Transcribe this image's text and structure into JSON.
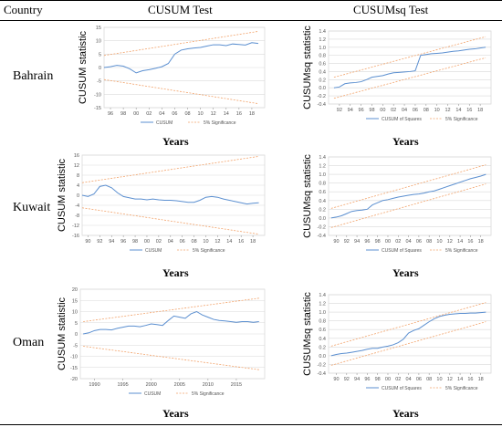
{
  "header": {
    "country": "Country",
    "cusum": "CUSUM Test",
    "cusumsq": "CUSUMsq Test"
  },
  "rows": [
    {
      "country": "Bahrain"
    },
    {
      "country": "Kuwait"
    },
    {
      "country": "Oman"
    }
  ],
  "colors": {
    "line": "#5b8fd0",
    "bound": "#f2a36b",
    "grid": "#d9d9d9",
    "axis": "#999999",
    "text": "#555555"
  },
  "chart_data": [
    {
      "type": "line",
      "panel": "bahrain-cusum",
      "ylabel": "CUSUM statistic",
      "xlabel": "Years",
      "xlim": [
        1995,
        2020
      ],
      "ylim": [
        -15,
        15
      ],
      "yticks": [
        -15,
        -10,
        -5,
        0,
        5,
        10,
        15
      ],
      "xticks": [
        1996,
        1998,
        2000,
        2002,
        2004,
        2006,
        2008,
        2010,
        2012,
        2014,
        2016,
        2018
      ],
      "xtick_labels": [
        "96",
        "98",
        "00",
        "02",
        "04",
        "06",
        "08",
        "10",
        "12",
        "14",
        "16",
        "18"
      ],
      "legend": [
        "CUSUM",
        "5% Significance"
      ],
      "series": [
        {
          "name": "CUSUM",
          "x": [
            1995,
            1996,
            1997,
            1998,
            1999,
            2000,
            2001,
            2002,
            2003,
            2004,
            2005,
            2006,
            2007,
            2008,
            2009,
            2010,
            2011,
            2012,
            2013,
            2014,
            2015,
            2016,
            2017,
            2018,
            2019
          ],
          "y": [
            0,
            0.3,
            0.8,
            0.5,
            -0.5,
            -2,
            -1.2,
            -0.8,
            -0.3,
            0.3,
            1.5,
            5,
            6.5,
            7,
            7.3,
            7.5,
            8,
            8.5,
            8.5,
            8.2,
            8.8,
            8.6,
            8.4,
            9.3,
            9
          ]
        },
        {
          "name": "5% Significance",
          "x": [
            1995,
            2019
          ],
          "y": [
            4.5,
            13.5
          ]
        },
        {
          "name": "5% Significance",
          "x": [
            1995,
            2019
          ],
          "y": [
            -4.5,
            -13.5
          ]
        }
      ]
    },
    {
      "type": "line",
      "panel": "bahrain-cusumsq",
      "ylabel": "CUSUMsq statistic",
      "xlabel": "Years",
      "xlim": [
        1990,
        2020
      ],
      "ylim": [
        -0.4,
        1.4
      ],
      "yticks": [
        -0.4,
        -0.2,
        0,
        0.2,
        0.4,
        0.6,
        0.8,
        1,
        1.2,
        1.4
      ],
      "ytick_labels": [
        "-0.4",
        "-0.2",
        "0.0",
        "0.2",
        "0.4",
        "0.6",
        "0.8",
        "1.0",
        "1.2",
        "1.4"
      ],
      "xticks": [
        1992,
        1994,
        1996,
        1998,
        2000,
        2002,
        2004,
        2006,
        2008,
        2010,
        2012,
        2014,
        2016,
        2018
      ],
      "xtick_labels": [
        "92",
        "94",
        "96",
        "98",
        "00",
        "02",
        "04",
        "06",
        "08",
        "10",
        "12",
        "14",
        "16",
        "18"
      ],
      "legend": [
        "CUSUM of Squares",
        "5% Significance"
      ],
      "series": [
        {
          "name": "CUSUM of Squares",
          "x": [
            1991,
            1992,
            1993,
            1994,
            1995,
            1996,
            1997,
            1998,
            1999,
            2000,
            2001,
            2002,
            2003,
            2004,
            2005,
            2006,
            2007,
            2008,
            2009,
            2010,
            2011,
            2012,
            2013,
            2014,
            2015,
            2016,
            2017,
            2018,
            2019
          ],
          "y": [
            0,
            0.02,
            0.1,
            0.12,
            0.13,
            0.15,
            0.2,
            0.26,
            0.28,
            0.3,
            0.34,
            0.37,
            0.38,
            0.39,
            0.4,
            0.42,
            0.8,
            0.82,
            0.84,
            0.85,
            0.86,
            0.88,
            0.9,
            0.91,
            0.93,
            0.95,
            0.96,
            0.98,
            1
          ]
        },
        {
          "name": "5% Significance",
          "x": [
            1991,
            2019
          ],
          "y": [
            0.26,
            1.26
          ]
        },
        {
          "name": "5% Significance",
          "x": [
            1991,
            2019
          ],
          "y": [
            -0.26,
            0.74
          ]
        }
      ]
    },
    {
      "type": "line",
      "panel": "kuwait-cusum",
      "ylabel": "CUSUM statistic",
      "xlabel": "Years",
      "xlim": [
        1989,
        2020
      ],
      "ylim": [
        -16,
        16
      ],
      "yticks": [
        -16,
        -12,
        -8,
        -4,
        0,
        4,
        8,
        12,
        16
      ],
      "xticks": [
        1990,
        1992,
        1994,
        1996,
        1998,
        2000,
        2002,
        2004,
        2006,
        2008,
        2010,
        2012,
        2014,
        2016,
        2018
      ],
      "xtick_labels": [
        "90",
        "92",
        "94",
        "96",
        "98",
        "00",
        "02",
        "04",
        "06",
        "08",
        "10",
        "12",
        "14",
        "16",
        "18"
      ],
      "legend": [
        "CUSUM",
        "5% Significance"
      ],
      "series": [
        {
          "name": "CUSUM",
          "x": [
            1989,
            1990,
            1991,
            1992,
            1993,
            1994,
            1995,
            1996,
            1997,
            1998,
            1999,
            2000,
            2001,
            2002,
            2003,
            2004,
            2005,
            2006,
            2007,
            2008,
            2009,
            2010,
            2011,
            2012,
            2013,
            2014,
            2015,
            2016,
            2017,
            2018,
            2019
          ],
          "y": [
            0,
            -0.5,
            0.5,
            3.5,
            4,
            3,
            1,
            -0.5,
            -1,
            -1.5,
            -1.5,
            -1.8,
            -1.5,
            -1.8,
            -2,
            -2,
            -2.2,
            -2.5,
            -2.8,
            -2.8,
            -2,
            -0.8,
            -0.5,
            -0.8,
            -1.5,
            -2,
            -2.5,
            -3,
            -3.5,
            -3.2,
            -3
          ]
        },
        {
          "name": "5% Significance",
          "x": [
            1989,
            2019
          ],
          "y": [
            5,
            15.5
          ]
        },
        {
          "name": "5% Significance",
          "x": [
            1989,
            2019
          ],
          "y": [
            -5,
            -15.5
          ]
        }
      ]
    },
    {
      "type": "line",
      "panel": "kuwait-cusumsq",
      "ylabel": "CUSUMsq statistic",
      "xlabel": "Years",
      "xlim": [
        1988.5,
        2020
      ],
      "ylim": [
        -0.4,
        1.4
      ],
      "yticks": [
        -0.4,
        -0.2,
        0,
        0.2,
        0.4,
        0.6,
        0.8,
        1,
        1.2,
        1.4
      ],
      "ytick_labels": [
        "-0.4",
        "-0.2",
        "0.0",
        "0.2",
        "0.4",
        "0.6",
        "0.8",
        "1.0",
        "1.2",
        "1.4"
      ],
      "xticks": [
        1990,
        1992,
        1994,
        1996,
        1998,
        2000,
        2002,
        2004,
        2006,
        2008,
        2010,
        2012,
        2014,
        2016,
        2018
      ],
      "xtick_labels": [
        "90",
        "92",
        "94",
        "96",
        "98",
        "00",
        "02",
        "04",
        "06",
        "08",
        "10",
        "12",
        "14",
        "16",
        "18"
      ],
      "legend": [
        "CUSUM of Squares",
        "5% Significance"
      ],
      "series": [
        {
          "name": "CUSUM of Squares",
          "x": [
            1989,
            1990,
            1991,
            1992,
            1993,
            1994,
            1995,
            1996,
            1997,
            1998,
            1999,
            2000,
            2001,
            2002,
            2003,
            2004,
            2005,
            2006,
            2007,
            2008,
            2009,
            2010,
            2011,
            2012,
            2013,
            2014,
            2015,
            2016,
            2017,
            2018,
            2019
          ],
          "y": [
            0,
            0.02,
            0.05,
            0.1,
            0.15,
            0.17,
            0.18,
            0.2,
            0.3,
            0.35,
            0.4,
            0.42,
            0.45,
            0.48,
            0.5,
            0.52,
            0.54,
            0.55,
            0.57,
            0.6,
            0.62,
            0.66,
            0.7,
            0.74,
            0.78,
            0.82,
            0.86,
            0.9,
            0.93,
            0.96,
            1
          ]
        },
        {
          "name": "5% Significance",
          "x": [
            1989,
            2019
          ],
          "y": [
            0.22,
            1.22
          ]
        },
        {
          "name": "5% Significance",
          "x": [
            1989,
            2019
          ],
          "y": [
            -0.22,
            0.78
          ]
        }
      ]
    },
    {
      "type": "line",
      "panel": "oman-cusum",
      "ylabel": "CUSUM statistic",
      "xlabel": "Years",
      "xlim": [
        1987.5,
        2020
      ],
      "ylim": [
        -20,
        20
      ],
      "yticks": [
        -20,
        -15,
        -10,
        -5,
        0,
        5,
        10,
        15,
        20
      ],
      "xticks": [
        1990,
        1995,
        2000,
        2005,
        2010,
        2015
      ],
      "xtick_labels": [
        "1990",
        "1995",
        "2000",
        "2005",
        "2010",
        "2015"
      ],
      "legend": [
        "CUSUM",
        "5% Significance"
      ],
      "series": [
        {
          "name": "CUSUM",
          "x": [
            1988,
            1989,
            1990,
            1991,
            1992,
            1993,
            1994,
            1995,
            1996,
            1997,
            1998,
            1999,
            2000,
            2001,
            2002,
            2003,
            2004,
            2005,
            2006,
            2007,
            2008,
            2009,
            2010,
            2011,
            2012,
            2013,
            2014,
            2015,
            2016,
            2017,
            2018,
            2019
          ],
          "y": [
            0,
            0.5,
            1.5,
            2,
            2,
            1.8,
            2.5,
            3,
            3.5,
            3.5,
            3.2,
            3.8,
            4.5,
            4.2,
            3.8,
            6,
            8,
            7.5,
            7,
            9,
            10,
            8.5,
            7.5,
            6.5,
            6,
            5.8,
            5.5,
            5.2,
            5.5,
            5.5,
            5.2,
            5.5
          ]
        },
        {
          "name": "5% Significance",
          "x": [
            1988,
            2019
          ],
          "y": [
            5.5,
            16
          ]
        },
        {
          "name": "5% Significance",
          "x": [
            1988,
            2019
          ],
          "y": [
            -5.5,
            -16
          ]
        }
      ]
    },
    {
      "type": "line",
      "panel": "oman-cusumsq",
      "ylabel": "CUSUMsq statistic",
      "xlabel": "Years",
      "xlim": [
        1988.5,
        2020
      ],
      "ylim": [
        -0.4,
        1.4
      ],
      "yticks": [
        -0.4,
        -0.2,
        0,
        0.2,
        0.4,
        0.6,
        0.8,
        1,
        1.2,
        1.4
      ],
      "ytick_labels": [
        "-0.4",
        "-0.2",
        "0.0",
        "0.2",
        "0.4",
        "0.6",
        "0.8",
        "1.0",
        "1.2",
        "1.4"
      ],
      "xticks": [
        1990,
        1992,
        1994,
        1996,
        1998,
        2000,
        2002,
        2004,
        2006,
        2008,
        2010,
        2012,
        2014,
        2016,
        2018
      ],
      "xtick_labels": [
        "90",
        "92",
        "94",
        "96",
        "98",
        "00",
        "02",
        "04",
        "06",
        "08",
        "10",
        "12",
        "14",
        "16",
        "18"
      ],
      "legend": [
        "CUSUM of Squares",
        "5% Significance"
      ],
      "series": [
        {
          "name": "CUSUM of Squares",
          "x": [
            1989,
            1990,
            1991,
            1992,
            1993,
            1994,
            1995,
            1996,
            1997,
            1998,
            1999,
            2000,
            2001,
            2002,
            2003,
            2004,
            2005,
            2006,
            2007,
            2008,
            2009,
            2010,
            2011,
            2012,
            2013,
            2014,
            2015,
            2016,
            2017,
            2018,
            2019
          ],
          "y": [
            0,
            0.03,
            0.05,
            0.06,
            0.08,
            0.1,
            0.12,
            0.15,
            0.17,
            0.17,
            0.2,
            0.22,
            0.25,
            0.3,
            0.38,
            0.52,
            0.58,
            0.62,
            0.7,
            0.78,
            0.85,
            0.9,
            0.93,
            0.95,
            0.96,
            0.97,
            0.97,
            0.98,
            0.98,
            0.99,
            1
          ]
        },
        {
          "name": "5% Significance",
          "x": [
            1989,
            2019
          ],
          "y": [
            0.22,
            1.22
          ]
        },
        {
          "name": "5% Significance",
          "x": [
            1989,
            2019
          ],
          "y": [
            -0.22,
            0.78
          ]
        }
      ]
    }
  ]
}
